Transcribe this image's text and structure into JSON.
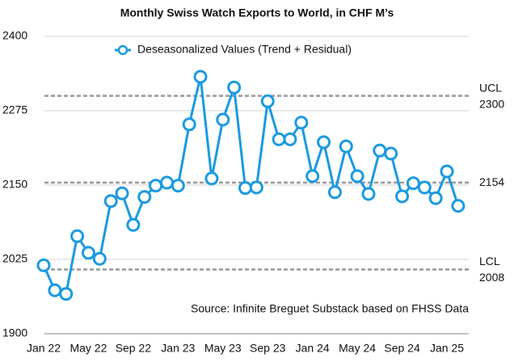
{
  "chart_data": {
    "type": "line",
    "title": "Monthly Swiss Watch Exports to World, in CHF M’s",
    "source": "Source: Infinite Breguet Substack based on FHSS Data",
    "categories": [
      "Jan 22",
      null,
      null,
      null,
      "May 22",
      null,
      null,
      null,
      "Sep 22",
      null,
      null,
      null,
      "Jan 23",
      null,
      null,
      null,
      "May 23",
      null,
      null,
      null,
      "Sep 23",
      null,
      null,
      null,
      "Jan 24",
      null,
      null,
      null,
      "May 24",
      null,
      null,
      null,
      "Sep 24",
      null,
      null,
      null,
      "Jan 25",
      null
    ],
    "series": [
      {
        "name": "Deseasonalized Values (Trend + Residual)",
        "color": "#1b9ae0",
        "values": [
          2015,
          1973,
          1967,
          2064,
          2036,
          2026,
          2123,
          2136,
          2083,
          2130,
          2149,
          2154,
          2149,
          2252,
          2332,
          2161,
          2260,
          2314,
          2145,
          2146,
          2291,
          2227,
          2227,
          2255,
          2165,
          2222,
          2138,
          2215,
          2165,
          2135,
          2208,
          2203,
          2131,
          2153,
          2146,
          2128,
          2173,
          2115
        ]
      }
    ],
    "ylim": [
      1900,
      2400
    ],
    "yticks": [
      1900,
      2025,
      2150,
      2275,
      2400
    ],
    "grid": true,
    "reference_lines": [
      {
        "label": "UCL",
        "value": 2300
      },
      {
        "value": 2154
      },
      {
        "label": "LCL",
        "value": 2008
      }
    ],
    "legend": "top"
  }
}
